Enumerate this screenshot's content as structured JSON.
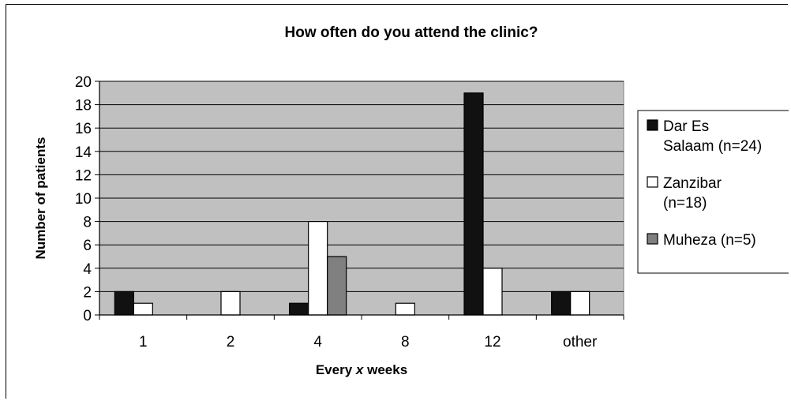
{
  "chart_data": {
    "type": "bar",
    "title": "How often do you attend the clinic?",
    "xlabel_prefix": "Every",
    "xlabel_var": "x",
    "xlabel_suffix": "weeks",
    "ylabel": "Number of patients",
    "categories": [
      "1",
      "2",
      "4",
      "8",
      "12",
      "other"
    ],
    "ylim": [
      0,
      20
    ],
    "yticks": [
      0,
      2,
      4,
      6,
      8,
      10,
      12,
      14,
      16,
      18,
      20
    ],
    "grid": true,
    "legend_position": "right",
    "plot_background": "#c0c0c0",
    "series": [
      {
        "name": "Dar Es Salaam (n=24)",
        "name_lines": [
          "Dar Es",
          "Salaam (n=24)"
        ],
        "color": "#111111",
        "values": [
          2,
          0,
          1,
          0,
          19,
          2
        ]
      },
      {
        "name": "Zanzibar (n=18)",
        "name_lines": [
          "Zanzibar",
          "(n=18)"
        ],
        "color": "#ffffff",
        "values": [
          1,
          2,
          8,
          1,
          4,
          2
        ]
      },
      {
        "name": "Muheza (n=5)",
        "name_lines": [
          "Muheza (n=5)"
        ],
        "color": "#808080",
        "values": [
          0,
          0,
          5,
          0,
          0,
          0
        ]
      }
    ]
  }
}
